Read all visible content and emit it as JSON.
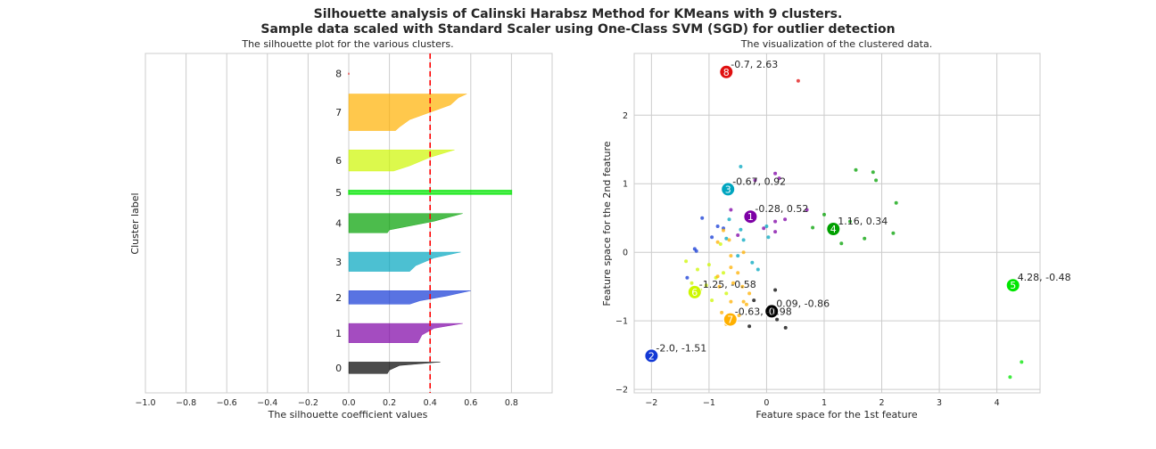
{
  "figure": {
    "suptitle_line1": "Silhouette analysis of Calinski Harabsz Method for KMeans with 9 clusters.",
    "suptitle_line2": "Sample data scaled with Standard Scaler using One-Class SVM (SGD) for outlier detection"
  },
  "chart_data": [
    {
      "type": "area",
      "title": "The silhouette plot for the various clusters.",
      "xlabel": "The silhouette coefficient values",
      "ylabel": "Cluster label",
      "xlim": [
        -1.0,
        1.0
      ],
      "xticks": [
        -1.0,
        -0.8,
        -0.6,
        -0.4,
        -0.2,
        0.0,
        0.2,
        0.4,
        0.6,
        0.8
      ],
      "xtick_labels": [
        "−1.0",
        "−0.8",
        "−0.6",
        "−0.4",
        "−0.2",
        "0.0",
        "0.2",
        "0.4",
        "0.6",
        "0.8"
      ],
      "average_silhouette": 0.4,
      "average_line_color": "#ff0000",
      "grid": true,
      "clusters": [
        {
          "label": "0",
          "size": 6,
          "color": "#000000",
          "profile": [
            [
              0,
              0.45
            ],
            [
              0.3,
              0.25
            ],
            [
              0.7,
              0.2
            ],
            [
              1,
              0.19
            ]
          ]
        },
        {
          "label": "1",
          "size": 10,
          "color": "#7d00a5",
          "profile": [
            [
              0,
              0.56
            ],
            [
              0.25,
              0.42
            ],
            [
              0.6,
              0.36
            ],
            [
              1,
              0.34
            ]
          ]
        },
        {
          "label": "2",
          "size": 7,
          "color": "#1238d5",
          "profile": [
            [
              0,
              0.6
            ],
            [
              0.4,
              0.48
            ],
            [
              0.75,
              0.35
            ],
            [
              1,
              0.3
            ]
          ]
        },
        {
          "label": "3",
          "size": 10,
          "color": "#00a5bf",
          "profile": [
            [
              0,
              0.55
            ],
            [
              0.3,
              0.42
            ],
            [
              0.7,
              0.33
            ],
            [
              1,
              0.3
            ]
          ]
        },
        {
          "label": "4",
          "size": 10,
          "color": "#00a000",
          "profile": [
            [
              0,
              0.56
            ],
            [
              0.4,
              0.42
            ],
            [
              0.85,
              0.2
            ],
            [
              1,
              0.19
            ]
          ]
        },
        {
          "label": "5",
          "size": 2,
          "color": "#00e600",
          "profile": [
            [
              0,
              0.8
            ],
            [
              1,
              0.8
            ]
          ]
        },
        {
          "label": "6",
          "size": 11,
          "color": "#cdf700",
          "profile": [
            [
              0,
              0.52
            ],
            [
              0.35,
              0.4
            ],
            [
              0.75,
              0.3
            ],
            [
              1,
              0.22
            ]
          ]
        },
        {
          "label": "7",
          "size": 19,
          "color": "#ffb000",
          "profile": [
            [
              0,
              0.58
            ],
            [
              0.1,
              0.54
            ],
            [
              0.3,
              0.5
            ],
            [
              0.7,
              0.3
            ],
            [
              0.9,
              0.25
            ],
            [
              1,
              0.23
            ]
          ]
        },
        {
          "label": "8",
          "size": 1,
          "color": "#e01010",
          "profile": [
            [
              0,
              0.0
            ],
            [
              1,
              0.0
            ]
          ]
        }
      ]
    },
    {
      "type": "scatter",
      "title": "The visualization of the clustered data.",
      "xlabel": "Feature space for the 1st feature",
      "ylabel": "Feature space for the 2nd feature",
      "xlim": [
        -2.3,
        4.75
      ],
      "ylim": [
        -2.05,
        2.9
      ],
      "xticks": [
        -2,
        -1,
        0,
        1,
        2,
        3,
        4
      ],
      "xtick_labels": [
        "−2",
        "−1",
        "0",
        "1",
        "2",
        "3",
        "4"
      ],
      "yticks": [
        -2,
        -1,
        0,
        1,
        2
      ],
      "ytick_labels": [
        "−2",
        "−1",
        "0",
        "1",
        "2"
      ],
      "grid": true,
      "centers": [
        {
          "id": "0",
          "x": 0.09,
          "y": -0.86,
          "label": "0.09, -0.86",
          "color": "#000000"
        },
        {
          "id": "1",
          "x": -0.28,
          "y": 0.52,
          "label": "-0.28, 0.52",
          "color": "#7d00a5"
        },
        {
          "id": "2",
          "x": -2.0,
          "y": -1.51,
          "label": "-2.0, -1.51",
          "color": "#1238d5"
        },
        {
          "id": "3",
          "x": -0.67,
          "y": 0.92,
          "label": "-0.67, 0.92",
          "color": "#00a5bf"
        },
        {
          "id": "4",
          "x": 1.16,
          "y": 0.34,
          "label": "1.16, 0.34",
          "color": "#00a000"
        },
        {
          "id": "5",
          "x": 4.28,
          "y": -0.48,
          "label": "4.28, -0.48",
          "color": "#00e600"
        },
        {
          "id": "6",
          "x": -1.25,
          "y": -0.58,
          "label": "-1.25, -0.58",
          "color": "#cdf700"
        },
        {
          "id": "7",
          "x": -0.63,
          "y": -0.98,
          "label": "-0.63, -0.98",
          "color": "#ffb000"
        },
        {
          "id": "8",
          "x": -0.7,
          "y": 2.63,
          "label": "-0.7, 2.63",
          "color": "#e01010"
        }
      ],
      "points": [
        {
          "cluster": 0,
          "x": -0.22,
          "y": -0.7
        },
        {
          "cluster": 0,
          "x": -0.3,
          "y": -1.08
        },
        {
          "cluster": 0,
          "x": 0.15,
          "y": -0.55
        },
        {
          "cluster": 0,
          "x": 0.33,
          "y": -1.1
        },
        {
          "cluster": 0,
          "x": 0.05,
          "y": -0.92
        },
        {
          "cluster": 0,
          "x": 0.18,
          "y": -0.98
        },
        {
          "cluster": 1,
          "x": -0.2,
          "y": 1.05
        },
        {
          "cluster": 1,
          "x": 0.15,
          "y": 1.15
        },
        {
          "cluster": 1,
          "x": 0.22,
          "y": 1.08
        },
        {
          "cluster": 1,
          "x": 0.7,
          "y": 0.62
        },
        {
          "cluster": 1,
          "x": 0.32,
          "y": 0.48
        },
        {
          "cluster": 1,
          "x": 0.15,
          "y": 0.45
        },
        {
          "cluster": 1,
          "x": 0.15,
          "y": 0.3
        },
        {
          "cluster": 1,
          "x": -0.05,
          "y": 0.35
        },
        {
          "cluster": 1,
          "x": -0.62,
          "y": 0.62
        },
        {
          "cluster": 1,
          "x": -0.5,
          "y": 0.25
        },
        {
          "cluster": 2,
          "x": -1.12,
          "y": 0.5
        },
        {
          "cluster": 2,
          "x": -0.95,
          "y": 0.22
        },
        {
          "cluster": 2,
          "x": -1.25,
          "y": 0.05
        },
        {
          "cluster": 2,
          "x": -1.22,
          "y": 0.02
        },
        {
          "cluster": 2,
          "x": -1.38,
          "y": -0.37
        },
        {
          "cluster": 2,
          "x": -0.85,
          "y": 0.38
        },
        {
          "cluster": 2,
          "x": -0.75,
          "y": 0.35
        },
        {
          "cluster": 3,
          "x": -0.45,
          "y": 1.25
        },
        {
          "cluster": 3,
          "x": -0.65,
          "y": 0.48
        },
        {
          "cluster": 3,
          "x": -0.45,
          "y": 0.33
        },
        {
          "cluster": 3,
          "x": -0.5,
          "y": -0.05
        },
        {
          "cluster": 3,
          "x": -0.25,
          "y": -0.15
        },
        {
          "cluster": 3,
          "x": -0.15,
          "y": -0.25
        },
        {
          "cluster": 3,
          "x": 0.0,
          "y": 0.38
        },
        {
          "cluster": 3,
          "x": 0.03,
          "y": 0.22
        },
        {
          "cluster": 3,
          "x": -0.4,
          "y": 0.18
        },
        {
          "cluster": 3,
          "x": -0.7,
          "y": 0.2
        },
        {
          "cluster": 4,
          "x": 1.55,
          "y": 1.2
        },
        {
          "cluster": 4,
          "x": 1.85,
          "y": 1.17
        },
        {
          "cluster": 4,
          "x": 1.9,
          "y": 1.05
        },
        {
          "cluster": 4,
          "x": 2.25,
          "y": 0.72
        },
        {
          "cluster": 4,
          "x": 0.8,
          "y": 0.36
        },
        {
          "cluster": 4,
          "x": 1.3,
          "y": 0.13
        },
        {
          "cluster": 4,
          "x": 2.2,
          "y": 0.28
        },
        {
          "cluster": 4,
          "x": 1.0,
          "y": 0.55
        },
        {
          "cluster": 4,
          "x": 1.45,
          "y": 0.45
        },
        {
          "cluster": 4,
          "x": 1.7,
          "y": 0.2
        },
        {
          "cluster": 5,
          "x": 4.43,
          "y": -1.6
        },
        {
          "cluster": 5,
          "x": 4.23,
          "y": -1.82
        },
        {
          "cluster": 6,
          "x": -0.8,
          "y": 0.12
        },
        {
          "cluster": 6,
          "x": -1.4,
          "y": -0.13
        },
        {
          "cluster": 6,
          "x": -1.0,
          "y": -0.18
        },
        {
          "cluster": 6,
          "x": -0.88,
          "y": -0.37
        },
        {
          "cluster": 6,
          "x": -1.05,
          "y": -0.48
        },
        {
          "cluster": 6,
          "x": -1.15,
          "y": -0.55
        },
        {
          "cluster": 6,
          "x": -0.95,
          "y": -0.7
        },
        {
          "cluster": 6,
          "x": -0.7,
          "y": -0.6
        },
        {
          "cluster": 6,
          "x": -1.2,
          "y": -0.25
        },
        {
          "cluster": 6,
          "x": -1.3,
          "y": -0.45
        },
        {
          "cluster": 6,
          "x": -0.75,
          "y": -0.3
        },
        {
          "cluster": 7,
          "x": -0.75,
          "y": 0.32
        },
        {
          "cluster": 7,
          "x": -0.85,
          "y": 0.15
        },
        {
          "cluster": 7,
          "x": -0.65,
          "y": 0.18
        },
        {
          "cluster": 7,
          "x": -0.62,
          "y": -0.05
        },
        {
          "cluster": 7,
          "x": -0.4,
          "y": 0.0
        },
        {
          "cluster": 7,
          "x": -0.62,
          "y": -0.22
        },
        {
          "cluster": 7,
          "x": -0.85,
          "y": -0.35
        },
        {
          "cluster": 7,
          "x": -0.82,
          "y": -0.5
        },
        {
          "cluster": 7,
          "x": -0.58,
          "y": -0.45
        },
        {
          "cluster": 7,
          "x": -0.42,
          "y": -0.5
        },
        {
          "cluster": 7,
          "x": -0.62,
          "y": -0.72
        },
        {
          "cluster": 7,
          "x": -0.4,
          "y": -0.72
        },
        {
          "cluster": 7,
          "x": -0.35,
          "y": -0.76
        },
        {
          "cluster": 7,
          "x": -0.78,
          "y": -0.88
        },
        {
          "cluster": 7,
          "x": -0.48,
          "y": -0.92
        },
        {
          "cluster": 7,
          "x": -0.7,
          "y": -1.05
        },
        {
          "cluster": 7,
          "x": -0.55,
          "y": -1.0
        },
        {
          "cluster": 7,
          "x": -0.3,
          "y": -0.6
        },
        {
          "cluster": 7,
          "x": -0.5,
          "y": -0.3
        },
        {
          "cluster": 8,
          "x": 0.55,
          "y": 2.5
        }
      ]
    }
  ]
}
